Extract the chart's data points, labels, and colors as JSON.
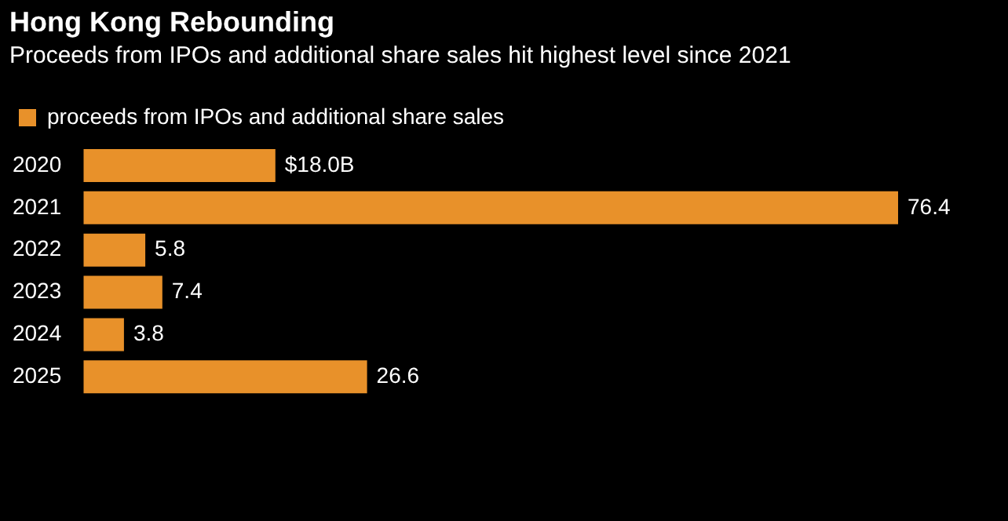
{
  "chart_data": {
    "type": "bar",
    "orientation": "horizontal",
    "title": "Hong Kong Rebounding",
    "subtitle": "Proceeds from IPOs and additional share sales hit highest level since 2021",
    "categories": [
      "2020",
      "2021",
      "2022",
      "2023",
      "2024",
      "2025"
    ],
    "series": [
      {
        "name": "proceeds from IPOs and additional share sales",
        "color": "#e8912a",
        "values": [
          18.0,
          76.4,
          5.8,
          7.4,
          3.8,
          26.6
        ],
        "value_labels": [
          "$18.0B",
          "76.4",
          "5.8",
          "7.4",
          "3.8",
          "26.6"
        ]
      }
    ],
    "legend": "top left"
  }
}
